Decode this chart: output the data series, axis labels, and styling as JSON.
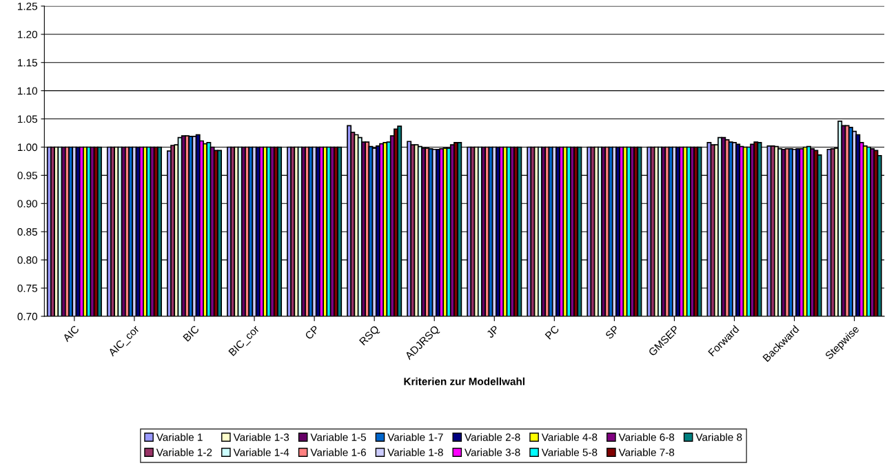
{
  "chart_data": {
    "type": "bar",
    "xlabel": "Kriterien zur Modellwahl",
    "categories": [
      "AIC",
      "AIC_cor",
      "BIC",
      "BIC_cor",
      "CP",
      "RSQ",
      "ADJRSQ",
      "JP",
      "PC",
      "SP",
      "GMSEP",
      "Forward",
      "Backward",
      "Stepwise"
    ],
    "series": [
      {
        "name": "Variable 1",
        "color": "#9999ff",
        "values": [
          1.0,
          1.0,
          0.993,
          1.0,
          1.0,
          1.038,
          1.01,
          1.0,
          1.0,
          1.0,
          1.0,
          1.008,
          1.002,
          0.996
        ]
      },
      {
        "name": "Variable 1-2",
        "color": "#993366",
        "values": [
          1.0,
          1.0,
          1.003,
          1.0,
          1.0,
          1.026,
          1.004,
          1.0,
          1.0,
          1.0,
          1.0,
          1.004,
          1.002,
          0.997
        ]
      },
      {
        "name": "Variable 1-3",
        "color": "#ffffcc",
        "values": [
          1.0,
          1.0,
          1.004,
          1.0,
          1.0,
          1.022,
          1.004,
          1.0,
          1.0,
          1.0,
          1.0,
          1.004,
          1.001,
          0.998
        ]
      },
      {
        "name": "Variable 1-4",
        "color": "#ccffff",
        "values": [
          1.0,
          1.0,
          1.017,
          1.0,
          1.0,
          1.017,
          1.001,
          1.0,
          1.0,
          1.0,
          1.0,
          1.017,
          0.997,
          1.046
        ]
      },
      {
        "name": "Variable 1-5",
        "color": "#660066",
        "values": [
          1.0,
          1.0,
          1.02,
          1.0,
          1.0,
          1.009,
          0.998,
          1.0,
          1.0,
          1.0,
          1.0,
          1.017,
          0.996,
          1.038
        ]
      },
      {
        "name": "Variable 1-6",
        "color": "#ff8080",
        "values": [
          1.0,
          1.0,
          1.02,
          1.0,
          1.0,
          1.009,
          0.998,
          1.0,
          1.0,
          1.0,
          1.0,
          1.013,
          0.997,
          1.038
        ]
      },
      {
        "name": "Variable 1-7",
        "color": "#0066cc",
        "values": [
          1.0,
          1.0,
          1.019,
          1.0,
          1.0,
          1.001,
          0.997,
          1.0,
          1.0,
          1.0,
          1.0,
          1.009,
          0.997,
          1.035
        ]
      },
      {
        "name": "Variable 1-8",
        "color": "#ccccff",
        "values": [
          1.0,
          1.0,
          1.019,
          1.0,
          1.0,
          0.998,
          0.996,
          1.0,
          1.0,
          1.0,
          1.0,
          1.008,
          0.996,
          1.028
        ]
      },
      {
        "name": "Variable 2-8",
        "color": "#000080",
        "values": [
          1.0,
          1.0,
          1.022,
          1.0,
          1.0,
          1.002,
          0.996,
          1.0,
          1.0,
          1.0,
          1.0,
          1.005,
          0.997,
          1.022
        ]
      },
      {
        "name": "Variable 3-8",
        "color": "#ff00ff",
        "values": [
          1.0,
          1.0,
          1.011,
          1.0,
          1.0,
          1.006,
          0.997,
          1.0,
          1.0,
          1.0,
          1.0,
          1.001,
          0.997,
          1.008
        ]
      },
      {
        "name": "Variable 4-8",
        "color": "#ffff00",
        "values": [
          1.0,
          1.0,
          1.006,
          1.0,
          1.0,
          1.008,
          0.998,
          1.0,
          1.0,
          1.0,
          1.0,
          1.0,
          1.0,
          1.002
        ]
      },
      {
        "name": "Variable 5-8",
        "color": "#00ffff",
        "values": [
          1.0,
          1.0,
          1.008,
          1.0,
          1.0,
          1.009,
          0.998,
          1.0,
          1.0,
          1.0,
          1.0,
          1.0,
          1.001,
          1.0
        ]
      },
      {
        "name": "Variable 6-8",
        "color": "#800080",
        "values": [
          1.0,
          1.0,
          1.0,
          1.0,
          1.0,
          1.02,
          1.004,
          1.0,
          1.0,
          1.0,
          1.0,
          1.005,
          0.997,
          0.997
        ]
      },
      {
        "name": "Variable 7-8",
        "color": "#800000",
        "values": [
          1.0,
          1.0,
          0.994,
          1.0,
          1.0,
          1.032,
          1.008,
          1.0,
          1.0,
          1.0,
          1.0,
          1.009,
          0.994,
          0.994
        ]
      },
      {
        "name": "Variable 8",
        "color": "#008080",
        "values": [
          1.0,
          1.0,
          0.994,
          1.0,
          1.0,
          1.037,
          1.008,
          1.0,
          1.0,
          1.0,
          1.0,
          1.008,
          0.986,
          0.985
        ]
      }
    ],
    "ylim": [
      0.7,
      1.25
    ],
    "yticks": [
      {
        "value": 0.7,
        "label": "0.70"
      },
      {
        "value": 0.75,
        "label": "0.75"
      },
      {
        "value": 0.8,
        "label": "0.80"
      },
      {
        "value": 0.85,
        "label": "0.85"
      },
      {
        "value": 0.9,
        "label": "0.90"
      },
      {
        "value": 0.95,
        "label": "0.95"
      },
      {
        "value": 1.0,
        "label": "1.00"
      },
      {
        "value": 1.05,
        "label": "1.05"
      },
      {
        "value": 1.1,
        "label": "1.10"
      },
      {
        "value": 1.15,
        "label": "1.15"
      },
      {
        "value": 1.2,
        "label": "1.20"
      },
      {
        "value": 1.25,
        "label": "1.25"
      }
    ],
    "grid": "y",
    "legend": "bottom"
  }
}
